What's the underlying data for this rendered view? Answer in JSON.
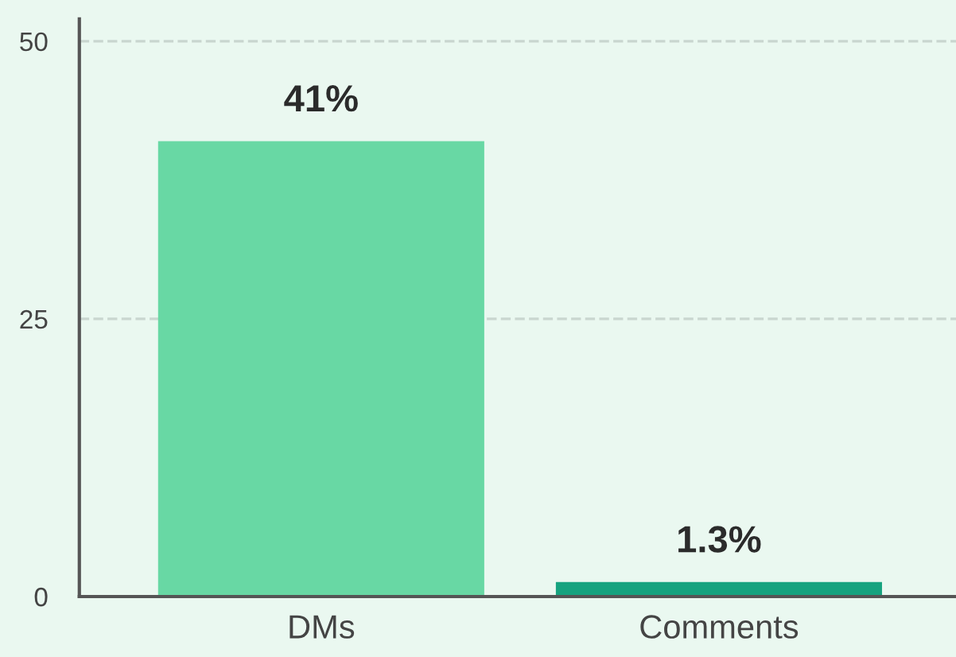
{
  "chart_data": {
    "type": "bar",
    "categories": [
      "DMs",
      "Comments"
    ],
    "values": [
      41,
      1.3
    ],
    "colors": [
      "#68d8a4",
      "#16a37f"
    ],
    "value_labels": [
      "41%",
      "1.3%"
    ],
    "ylim": [
      0,
      52
    ],
    "yticks": [
      0,
      25,
      50
    ],
    "grid": "y",
    "legend": false
  }
}
